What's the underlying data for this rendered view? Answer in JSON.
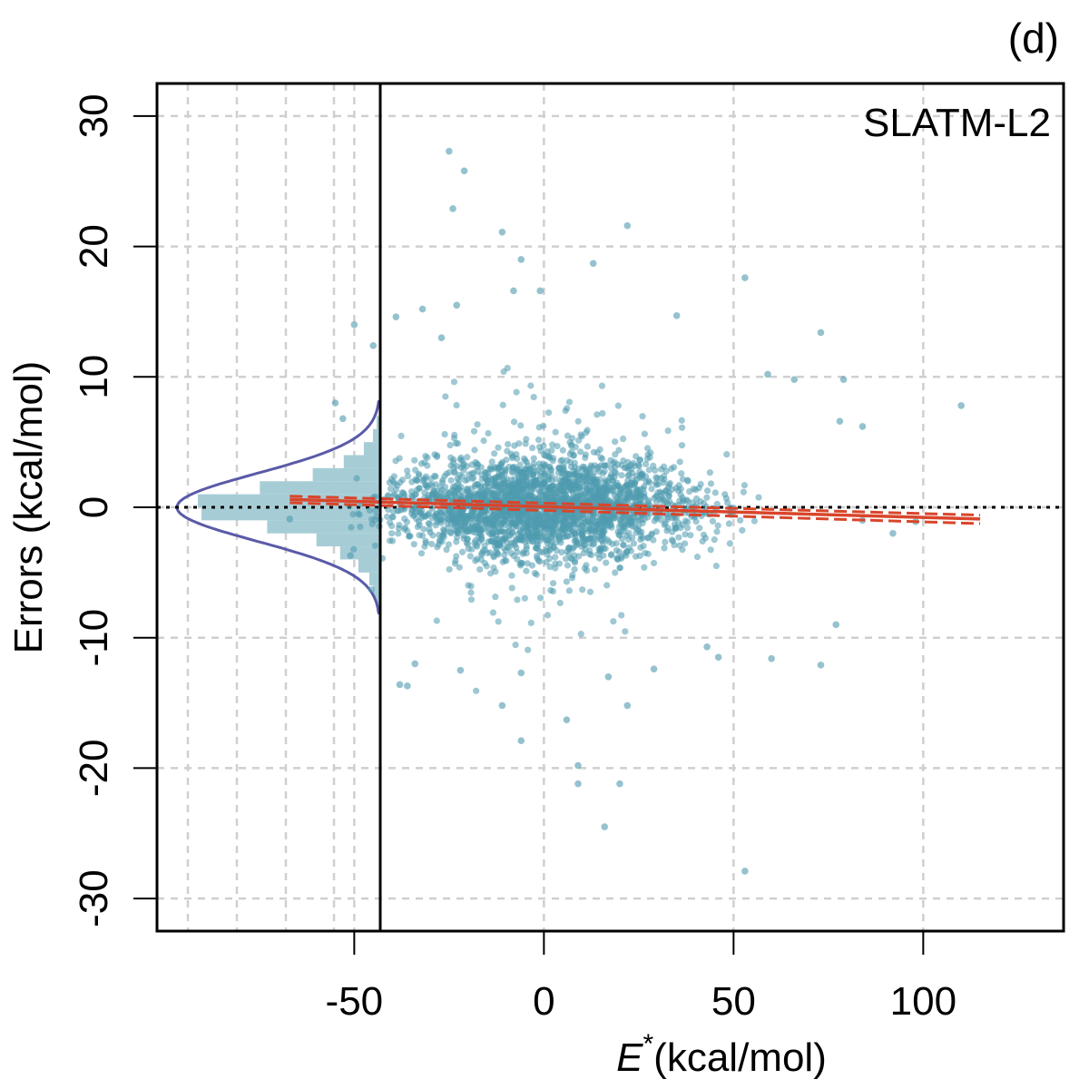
{
  "chart_data": {
    "type": "scatter",
    "panel_label": "(d)",
    "legend_text": "SLATM-L2",
    "xlabel_symbol": "E",
    "xlabel_superscript": "*",
    "xlabel_units": "(kcal/mol)",
    "ylabel": "Errors (kcal/mol)",
    "xlim": [
      -102,
      137
    ],
    "ylim": [
      -32.5,
      32.5
    ],
    "xticks": [
      -50,
      0,
      50,
      100
    ],
    "xtick_labels": [
      "-50",
      "0",
      "50",
      "100"
    ],
    "yticks": [
      -30,
      -20,
      -10,
      0,
      10,
      20,
      30
    ],
    "ytick_labels": [
      "-30",
      "-20",
      "-10",
      "0",
      "10",
      "20",
      "30"
    ],
    "grid": true,
    "zero_line": 0,
    "point_color": "#4e9aae",
    "fit_color": "#d9452b",
    "density_color": "#5a5aa8",
    "histogram_color": "#a6cdd6",
    "fit_line": {
      "x": [
        -67,
        115
      ],
      "y": [
        0.6,
        -0.9
      ],
      "ci_upper_y": [
        0.85,
        -0.6
      ],
      "ci_lower_y": [
        0.35,
        -1.25
      ]
    },
    "error_distribution": {
      "mean": 0.0,
      "sd": 2.6,
      "histogram_bins": [
        {
          "lo": -8,
          "hi": -7,
          "count": 0.02
        },
        {
          "lo": -7,
          "hi": -6,
          "count": 0.04
        },
        {
          "lo": -6,
          "hi": -5,
          "count": 0.06
        },
        {
          "lo": -5,
          "hi": -4,
          "count": 0.12
        },
        {
          "lo": -4,
          "hi": -3,
          "count": 0.22
        },
        {
          "lo": -3,
          "hi": -2,
          "count": 0.35
        },
        {
          "lo": -2,
          "hi": -1,
          "count": 0.62
        },
        {
          "lo": -1,
          "hi": 0,
          "count": 0.98
        },
        {
          "lo": 0,
          "hi": 1,
          "count": 1.0
        },
        {
          "lo": 1,
          "hi": 2,
          "count": 0.66
        },
        {
          "lo": 2,
          "hi": 3,
          "count": 0.37
        },
        {
          "lo": 3,
          "hi": 4,
          "count": 0.2
        },
        {
          "lo": 4,
          "hi": 5,
          "count": 0.09
        },
        {
          "lo": 5,
          "hi": 6,
          "count": 0.04
        },
        {
          "lo": 6,
          "hi": 7,
          "count": 0.02
        }
      ]
    },
    "outliers": [
      {
        "x": -25,
        "y": 27.3
      },
      {
        "x": -21,
        "y": 25.8
      },
      {
        "x": -24,
        "y": 22.9
      },
      {
        "x": 22,
        "y": 21.6
      },
      {
        "x": -11,
        "y": 21.1
      },
      {
        "x": -6,
        "y": 19.0
      },
      {
        "x": 13,
        "y": 18.7
      },
      {
        "x": 53,
        "y": 17.6
      },
      {
        "x": -8,
        "y": 16.6
      },
      {
        "x": -1,
        "y": 16.6
      },
      {
        "x": -23,
        "y": 15.5
      },
      {
        "x": -32,
        "y": 15.2
      },
      {
        "x": 35,
        "y": 14.7
      },
      {
        "x": -39,
        "y": 14.6
      },
      {
        "x": -50,
        "y": 14.0
      },
      {
        "x": 73,
        "y": 13.4
      },
      {
        "x": -27,
        "y": 13.0
      },
      {
        "x": -45,
        "y": 12.4
      },
      {
        "x": 66,
        "y": 9.8
      },
      {
        "x": 79,
        "y": 9.8
      },
      {
        "x": 59,
        "y": 10.2
      },
      {
        "x": 110,
        "y": 7.8
      },
      {
        "x": 78,
        "y": 6.6
      },
      {
        "x": 84,
        "y": 6.2
      },
      {
        "x": -55,
        "y": 8.0
      },
      {
        "x": -53,
        "y": 6.8
      },
      {
        "x": 98,
        "y": -1.1
      },
      {
        "x": 92,
        "y": -2.0
      },
      {
        "x": 84,
        "y": -1.0
      },
      {
        "x": -67,
        "y": -0.9
      },
      {
        "x": -51,
        "y": -3.7
      },
      {
        "x": 77,
        "y": -9.0
      },
      {
        "x": 73,
        "y": -12.1
      },
      {
        "x": 60,
        "y": -11.6
      },
      {
        "x": 43,
        "y": -10.7
      },
      {
        "x": 46,
        "y": -11.5
      },
      {
        "x": -34,
        "y": -12.0
      },
      {
        "x": -36,
        "y": -13.7
      },
      {
        "x": -38,
        "y": -13.6
      },
      {
        "x": -22,
        "y": -12.5
      },
      {
        "x": -6,
        "y": -12.7
      },
      {
        "x": 17,
        "y": -13.0
      },
      {
        "x": 29,
        "y": -12.4
      },
      {
        "x": 22,
        "y": -15.2
      },
      {
        "x": -11,
        "y": -15.2
      },
      {
        "x": 6,
        "y": -16.3
      },
      {
        "x": -6,
        "y": -17.9
      },
      {
        "x": 9,
        "y": -19.8
      },
      {
        "x": 9,
        "y": -21.2
      },
      {
        "x": 20,
        "y": -21.2
      },
      {
        "x": 16,
        "y": -24.5
      },
      {
        "x": 53,
        "y": -27.9
      }
    ],
    "bulk_points": {
      "n": 2600,
      "center_x": 0,
      "sd_x": 19,
      "x_range": [
        -52,
        62
      ],
      "sd_y": 2.1,
      "seed": 7
    }
  }
}
